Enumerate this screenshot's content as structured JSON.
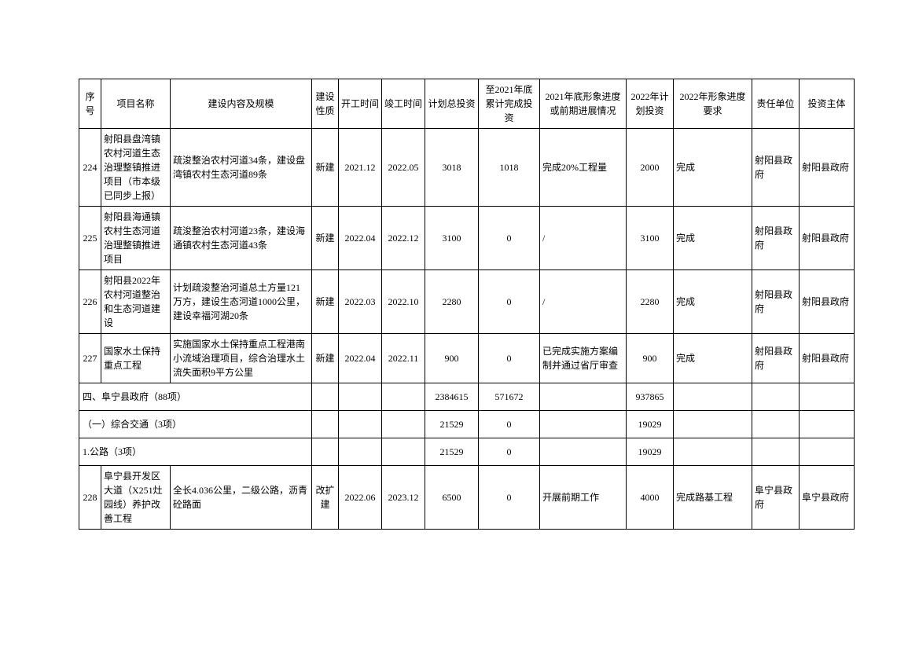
{
  "colors": {
    "border": "#000000",
    "background": "#ffffff",
    "text": "#000000"
  },
  "table": {
    "headers": {
      "seq": "序号",
      "name": "项目名称",
      "content": "建设内容及规模",
      "nature": "建设性质",
      "start": "开工时间",
      "end": "竣工时间",
      "total_invest": "计划总投资",
      "cumulative": "至2021年底累计完成投资",
      "progress_2021": "2021年底形象进度或前期进展情况",
      "plan_2022": "2022年计划投资",
      "req_2022": "2022年形象进度要求",
      "resp_unit": "责任单位",
      "invest_subject": "投资主体"
    },
    "rows": [
      {
        "seq": "224",
        "name": "射阳县盘湾镇农村河道生态治理整镇推进项目（市本级已同步上报）",
        "content": "疏浚整治农村河道34条，建设盘湾镇农村生态河道89条",
        "nature": "新建",
        "start": "2021.12",
        "end": "2022.05",
        "total_invest": "3018",
        "cumulative": "1018",
        "progress_2021": "完成20%工程量",
        "plan_2022": "2000",
        "req_2022": "完成",
        "resp_unit": "射阳县政府",
        "invest_subject": "射阳县政府"
      },
      {
        "seq": "225",
        "name": "射阳县海通镇农村生态河道治理整镇推进项目",
        "content": "疏浚整治农村河道23条，建设海通镇农村生态河道43条",
        "nature": "新建",
        "start": "2022.04",
        "end": "2022.12",
        "total_invest": "3100",
        "cumulative": "0",
        "progress_2021": "/",
        "plan_2022": "3100",
        "req_2022": "完成",
        "resp_unit": "射阳县政府",
        "invest_subject": "射阳县政府"
      },
      {
        "seq": "226",
        "name": "射阳县2022年农村河道整治和生态河道建设",
        "content": "计划疏浚整治河道总土方量121万方，建设生态河道1000公里，建设幸福河湖20条",
        "nature": "新建",
        "start": "2022.03",
        "end": "2022.10",
        "total_invest": "2280",
        "cumulative": "0",
        "progress_2021": "/",
        "plan_2022": "2280",
        "req_2022": "完成",
        "resp_unit": "射阳县政府",
        "invest_subject": "射阳县政府"
      },
      {
        "seq": "227",
        "name": "国家水土保持重点工程",
        "content": "实施国家水土保持重点工程港南小流域治理项目，综合治理水土流失面积9平方公里",
        "nature": "新建",
        "start": "2022.04",
        "end": "2022.11",
        "total_invest": "900",
        "cumulative": "0",
        "progress_2021": "已完成实施方案编制并通过省厅审查",
        "plan_2022": "900",
        "req_2022": "完成",
        "resp_unit": "射阳县政府",
        "invest_subject": "射阳县政府"
      }
    ],
    "sections": [
      {
        "label": "四、阜宁县政府（88项）",
        "total_invest": "2384615",
        "cumulative": "571672",
        "plan_2022": "937865"
      },
      {
        "label": "（一）综合交通（3项）",
        "total_invest": "21529",
        "cumulative": "0",
        "plan_2022": "19029"
      },
      {
        "label": "1.公路（3项）",
        "total_invest": "21529",
        "cumulative": "0",
        "plan_2022": "19029"
      }
    ],
    "rows2": [
      {
        "seq": "228",
        "name": "阜宁县开发区大道（X251灶园线）养护改善工程",
        "content": "全长4.036公里，二级公路，沥青砼路面",
        "nature": "改扩建",
        "start": "2022.06",
        "end": "2023.12",
        "total_invest": "6500",
        "cumulative": "0",
        "progress_2021": "开展前期工作",
        "plan_2022": "4000",
        "req_2022": "完成路基工程",
        "resp_unit": "阜宁县政府",
        "invest_subject": "阜宁县政府"
      }
    ]
  }
}
